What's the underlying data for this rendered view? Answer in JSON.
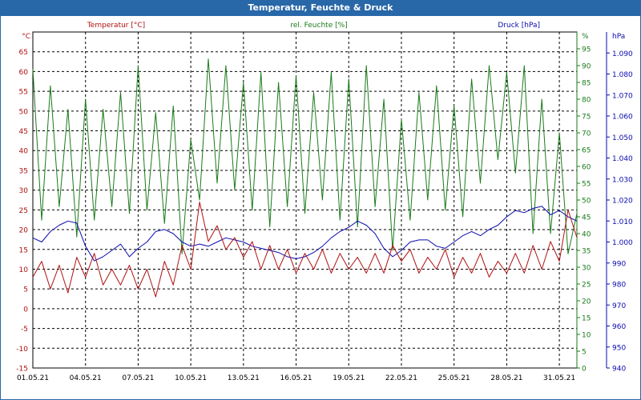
{
  "window_title": "Temperatur, Feuchte & Druck",
  "colors": {
    "temperature": "#b01010",
    "humidity": "#1a7a1a",
    "pressure": "#0a0ab0",
    "grid": "#000000",
    "titlebar": "#2867a8"
  },
  "chart_data": {
    "type": "line",
    "title": "Temperatur, Feuchte & Druck",
    "grid": true,
    "x_ticks": [
      "01.05.21",
      "04.05.21",
      "07.05.21",
      "10.05.21",
      "13.05.21",
      "16.05.21",
      "19.05.21",
      "22.05.21",
      "25.05.21",
      "28.05.21",
      "31.05.21"
    ],
    "x_range": [
      "2021-05-01",
      "2021-06-01"
    ],
    "axes": {
      "temperature": {
        "label": "Temperatur [°C]",
        "unit": "°C",
        "range": [
          -15,
          70
        ],
        "ticks": [
          -15,
          -10,
          -5,
          0,
          5,
          10,
          15,
          20,
          25,
          30,
          35,
          40,
          45,
          50,
          55,
          60,
          65
        ]
      },
      "humidity": {
        "label": "rel. Feuchte [%]",
        "unit": "%",
        "range": [
          0,
          100
        ],
        "ticks": [
          0,
          5,
          10,
          15,
          20,
          25,
          30,
          35,
          40,
          45,
          50,
          55,
          60,
          65,
          70,
          75,
          80,
          85,
          90,
          95
        ]
      },
      "pressure": {
        "label": "Druck [hPa]",
        "unit": "hPa",
        "range": [
          940,
          1100
        ],
        "ticks": [
          "940",
          "950",
          "960",
          "970",
          "980",
          "990",
          "1.000",
          "1.010",
          "1.020",
          "1.030",
          "1.040",
          "1.050",
          "1.060",
          "1.070",
          "1.080",
          "1.090"
        ]
      }
    },
    "series": [
      {
        "name": "Temperatur [°C]",
        "axis": "temperature",
        "x": [
          "2021-05-01 00:00",
          "2021-05-01 12:00",
          "2021-05-02 00:00",
          "2021-05-02 12:00",
          "2021-05-03 00:00",
          "2021-05-03 12:00",
          "2021-05-04 00:00",
          "2021-05-04 12:00",
          "2021-05-05 00:00",
          "2021-05-05 12:00",
          "2021-05-06 00:00",
          "2021-05-06 12:00",
          "2021-05-07 00:00",
          "2021-05-07 12:00",
          "2021-05-08 00:00",
          "2021-05-08 12:00",
          "2021-05-09 00:00",
          "2021-05-09 12:00",
          "2021-05-10 00:00",
          "2021-05-10 12:00",
          "2021-05-11 00:00",
          "2021-05-11 12:00",
          "2021-05-12 00:00",
          "2021-05-12 12:00",
          "2021-05-13 00:00",
          "2021-05-13 12:00",
          "2021-05-14 00:00",
          "2021-05-14 12:00",
          "2021-05-15 00:00",
          "2021-05-15 12:00",
          "2021-05-16 00:00",
          "2021-05-16 12:00",
          "2021-05-17 00:00",
          "2021-05-17 12:00",
          "2021-05-18 00:00",
          "2021-05-18 12:00",
          "2021-05-19 00:00",
          "2021-05-19 12:00",
          "2021-05-20 00:00",
          "2021-05-20 12:00",
          "2021-05-21 00:00",
          "2021-05-21 12:00",
          "2021-05-22 00:00",
          "2021-05-22 12:00",
          "2021-05-23 00:00",
          "2021-05-23 12:00",
          "2021-05-24 00:00",
          "2021-05-24 12:00",
          "2021-05-25 00:00",
          "2021-05-25 12:00",
          "2021-05-26 00:00",
          "2021-05-26 12:00",
          "2021-05-27 00:00",
          "2021-05-27 12:00",
          "2021-05-28 00:00",
          "2021-05-28 12:00",
          "2021-05-29 00:00",
          "2021-05-29 12:00",
          "2021-05-30 00:00",
          "2021-05-30 12:00",
          "2021-05-31 00:00",
          "2021-05-31 12:00",
          "2021-06-01 00:00"
        ],
        "y": [
          8,
          12,
          5,
          11,
          4,
          13,
          8,
          14,
          6,
          10,
          6,
          11,
          5,
          10,
          3,
          12,
          6,
          16,
          10,
          27,
          17,
          21,
          15,
          18,
          13,
          17,
          10,
          16,
          10,
          15,
          9,
          14,
          10,
          15,
          9,
          14,
          10,
          13,
          9,
          14,
          9,
          16,
          12,
          15,
          9,
          13,
          10,
          15,
          8,
          13,
          9,
          14,
          8,
          12,
          9,
          14,
          9,
          16,
          10,
          17,
          12,
          25,
          18
        ]
      },
      {
        "name": "rel. Feuchte [%]",
        "axis": "humidity",
        "x": [
          "2021-05-01 00:00",
          "2021-05-01 12:00",
          "2021-05-02 00:00",
          "2021-05-02 12:00",
          "2021-05-03 00:00",
          "2021-05-03 12:00",
          "2021-05-04 00:00",
          "2021-05-04 12:00",
          "2021-05-05 00:00",
          "2021-05-05 12:00",
          "2021-05-06 00:00",
          "2021-05-06 12:00",
          "2021-05-07 00:00",
          "2021-05-07 12:00",
          "2021-05-08 00:00",
          "2021-05-08 12:00",
          "2021-05-09 00:00",
          "2021-05-09 12:00",
          "2021-05-10 00:00",
          "2021-05-10 12:00",
          "2021-05-11 00:00",
          "2021-05-11 12:00",
          "2021-05-12 00:00",
          "2021-05-12 12:00",
          "2021-05-13 00:00",
          "2021-05-13 12:00",
          "2021-05-14 00:00",
          "2021-05-14 12:00",
          "2021-05-15 00:00",
          "2021-05-15 12:00",
          "2021-05-16 00:00",
          "2021-05-16 12:00",
          "2021-05-17 00:00",
          "2021-05-17 12:00",
          "2021-05-18 00:00",
          "2021-05-18 12:00",
          "2021-05-19 00:00",
          "2021-05-19 12:00",
          "2021-05-20 00:00",
          "2021-05-20 12:00",
          "2021-05-21 00:00",
          "2021-05-21 12:00",
          "2021-05-22 00:00",
          "2021-05-22 12:00",
          "2021-05-23 00:00",
          "2021-05-23 12:00",
          "2021-05-24 00:00",
          "2021-05-24 12:00",
          "2021-05-25 00:00",
          "2021-05-25 12:00",
          "2021-05-26 00:00",
          "2021-05-26 12:00",
          "2021-05-27 00:00",
          "2021-05-27 12:00",
          "2021-05-28 00:00",
          "2021-05-28 12:00",
          "2021-05-29 00:00",
          "2021-05-29 12:00",
          "2021-05-30 00:00",
          "2021-05-30 12:00",
          "2021-05-31 00:00",
          "2021-05-31 12:00",
          "2021-06-01 00:00"
        ],
        "y": [
          89,
          44,
          84,
          48,
          77,
          39,
          80,
          44,
          77,
          48,
          82,
          46,
          90,
          47,
          76,
          43,
          78,
          34,
          68,
          50,
          92,
          55,
          90,
          53,
          85,
          47,
          88,
          42,
          85,
          48,
          87,
          46,
          82,
          50,
          88,
          44,
          86,
          42,
          90,
          48,
          80,
          35,
          74,
          44,
          82,
          50,
          84,
          47,
          78,
          45,
          86,
          55,
          90,
          62,
          88,
          58,
          90,
          40,
          80,
          40,
          70,
          34,
          46
        ]
      },
      {
        "name": "Druck [hPa]",
        "axis": "pressure",
        "x": [
          "2021-05-01 00:00",
          "2021-05-01 12:00",
          "2021-05-02 00:00",
          "2021-05-02 12:00",
          "2021-05-03 00:00",
          "2021-05-03 12:00",
          "2021-05-04 00:00",
          "2021-05-04 12:00",
          "2021-05-05 00:00",
          "2021-05-05 12:00",
          "2021-05-06 00:00",
          "2021-05-06 12:00",
          "2021-05-07 00:00",
          "2021-05-07 12:00",
          "2021-05-08 00:00",
          "2021-05-08 12:00",
          "2021-05-09 00:00",
          "2021-05-09 12:00",
          "2021-05-10 00:00",
          "2021-05-10 12:00",
          "2021-05-11 00:00",
          "2021-05-11 12:00",
          "2021-05-12 00:00",
          "2021-05-12 12:00",
          "2021-05-13 00:00",
          "2021-05-13 12:00",
          "2021-05-14 00:00",
          "2021-05-14 12:00",
          "2021-05-15 00:00",
          "2021-05-15 12:00",
          "2021-05-16 00:00",
          "2021-05-16 12:00",
          "2021-05-17 00:00",
          "2021-05-17 12:00",
          "2021-05-18 00:00",
          "2021-05-18 12:00",
          "2021-05-19 00:00",
          "2021-05-19 12:00",
          "2021-05-20 00:00",
          "2021-05-20 12:00",
          "2021-05-21 00:00",
          "2021-05-21 12:00",
          "2021-05-22 00:00",
          "2021-05-22 12:00",
          "2021-05-23 00:00",
          "2021-05-23 12:00",
          "2021-05-24 00:00",
          "2021-05-24 12:00",
          "2021-05-25 00:00",
          "2021-05-25 12:00",
          "2021-05-26 00:00",
          "2021-05-26 12:00",
          "2021-05-27 00:00",
          "2021-05-27 12:00",
          "2021-05-28 00:00",
          "2021-05-28 12:00",
          "2021-05-29 00:00",
          "2021-05-29 12:00",
          "2021-05-30 00:00",
          "2021-05-30 12:00",
          "2021-05-31 00:00",
          "2021-05-31 12:00",
          "2021-06-01 00:00"
        ],
        "y": [
          1002,
          1000,
          1005,
          1008,
          1010,
          1009,
          998,
          991,
          993,
          996,
          999,
          993,
          997,
          1000,
          1005,
          1006,
          1004,
          1000,
          998,
          999,
          998,
          1000,
          1002,
          1001,
          1000,
          998,
          997,
          996,
          995,
          993,
          992,
          993,
          995,
          998,
          1002,
          1005,
          1007,
          1010,
          1008,
          1004,
          997,
          993,
          996,
          1000,
          1001,
          1001,
          998,
          997,
          1000,
          1003,
          1005,
          1003,
          1006,
          1008,
          1012,
          1015,
          1014,
          1016,
          1017,
          1013,
          1015,
          1012,
          1010
        ]
      }
    ]
  }
}
